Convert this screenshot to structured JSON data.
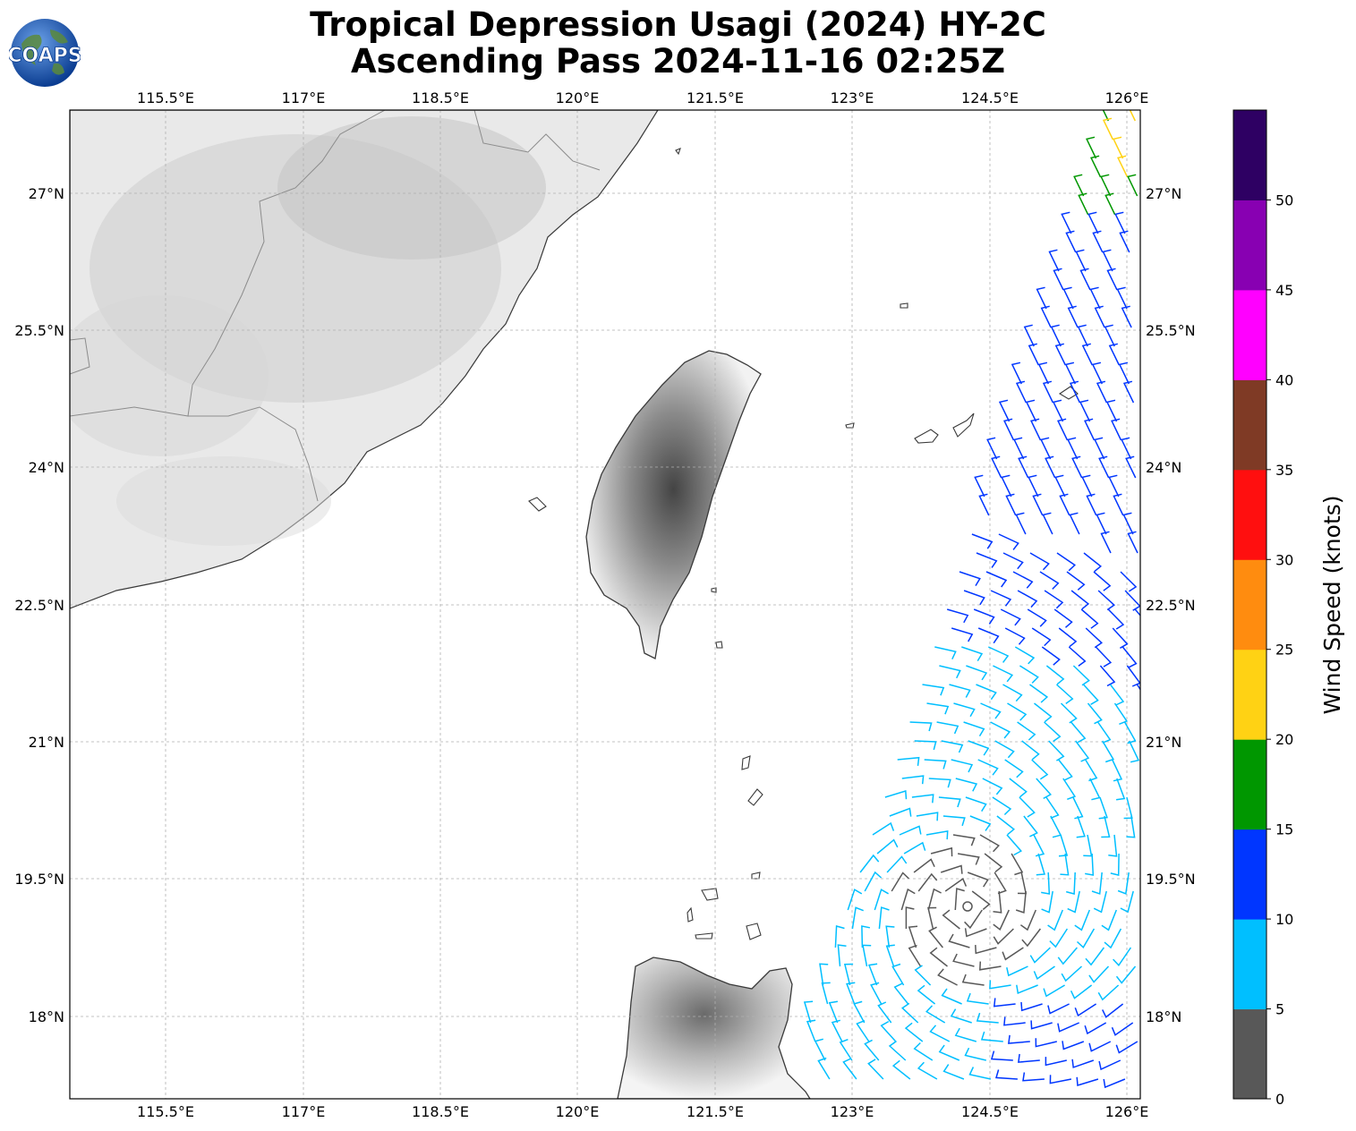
{
  "title": {
    "line1": "Tropical Depression Usagi (2024) HY-2C",
    "line2": "Ascending Pass 2024-11-16 02:25Z"
  },
  "logo": {
    "text": "COAPS",
    "icon": "globe-icon"
  },
  "map": {
    "lon_labels": [
      "115.5°E",
      "117°E",
      "118.5°E",
      "120°E",
      "121.5°E",
      "123°E",
      "124.5°E",
      "126°E"
    ],
    "lat_labels": [
      "27°N",
      "25.5°N",
      "24°N",
      "22.5°N",
      "21°N",
      "19.5°N",
      "18°N"
    ]
  },
  "colorbar": {
    "label": "Wind Speed (knots)",
    "ticks": [
      "0",
      "5",
      "10",
      "15",
      "20",
      "25",
      "30",
      "35",
      "40",
      "45",
      "50"
    ],
    "colors": [
      "#585858",
      "#00bfff",
      "#0036ff",
      "#009700",
      "#ffd214",
      "#ff8c0f",
      "#ff0f0f",
      "#7f3a25",
      "#ff00ff",
      "#8800b2",
      "#2e0063"
    ]
  },
  "legend_colors": {
    "land_shade": "#d9d9d9",
    "coast": "#3a3a3a",
    "grid": "#b0b0b0"
  }
}
